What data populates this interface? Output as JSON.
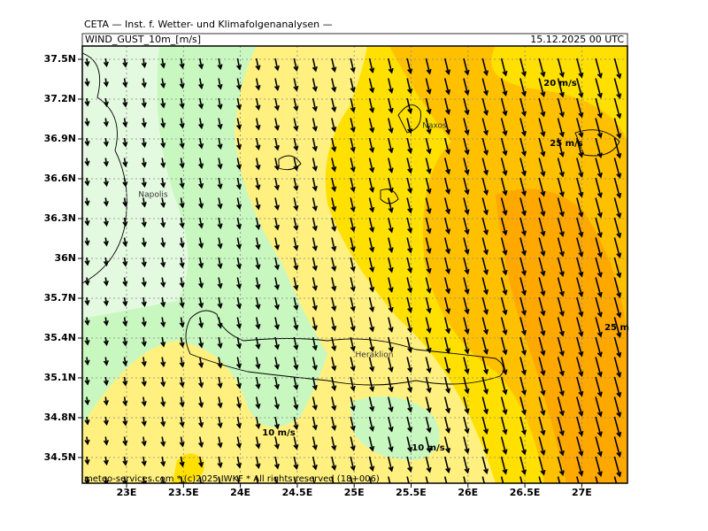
{
  "header": {
    "institute": "CETA — Inst. f. Wetter- und Klimafolgenanalysen —",
    "field": "WIND_GUST_10m_[m/s]",
    "valid_time": "15.12.2025 00 UTC",
    "footer": "meteo-services.com * (c)2025 IWKF * All rights reserved (18+006)"
  },
  "map": {
    "lat_labels": [
      "37.5N",
      "37.2N",
      "36.9N",
      "36.6N",
      "36.3N",
      "36N",
      "35.7N",
      "35.4N",
      "35.1N",
      "34.8N",
      "34.5N"
    ],
    "lon_labels": [
      "23E",
      "23.5E",
      "24E",
      "24.5E",
      "25E",
      "25.5E",
      "26E",
      "26.5E",
      "27E"
    ],
    "contour_labels": [
      "20 m/s",
      "25 m/s",
      "25 m",
      "10 m/s",
      "10 m/s"
    ],
    "places": [
      "Naxos",
      "Napolis",
      "Heraklion"
    ]
  }
}
